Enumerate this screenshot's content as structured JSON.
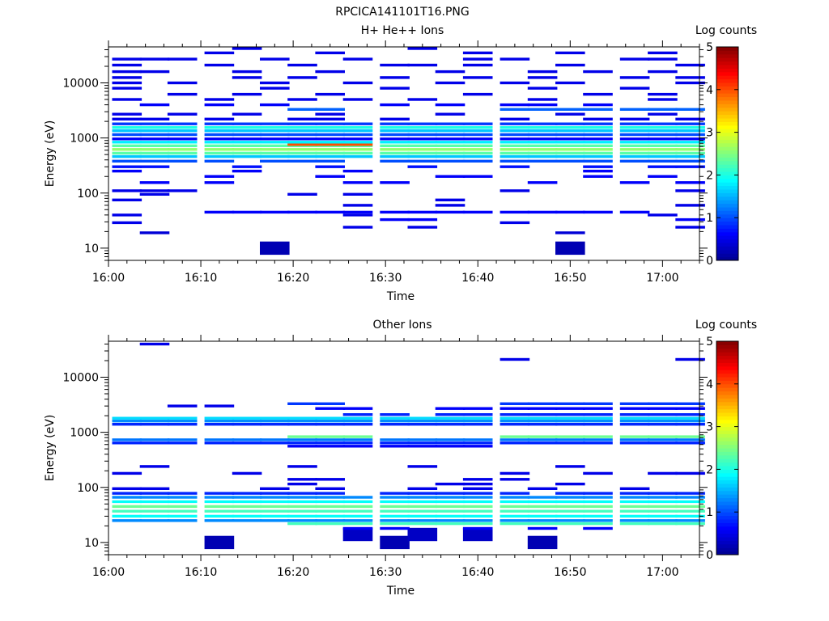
{
  "figure_title": "RPCICA141101T16.PNG",
  "colormap": [
    "#00008f",
    "#0000ff",
    "#0080ff",
    "#00ffff",
    "#80ff80",
    "#ffff00",
    "#ff8000",
    "#ff0000",
    "#800000"
  ],
  "chart_data": [
    {
      "type": "heatmap",
      "title": "H+ He++ Ions",
      "xlabel": "Time",
      "ylabel": "Energy (eV)",
      "colorbar_label": "Log counts",
      "colorbar_ticks": [
        "0",
        "1",
        "2",
        "3",
        "4",
        "5"
      ],
      "color_range": [
        0,
        5
      ],
      "xlim": [
        "16:00",
        "17:04"
      ],
      "x_ticks": [
        "16:00",
        "16:10",
        "16:20",
        "16:30",
        "16:40",
        "16:50",
        "17:00"
      ],
      "y_scale": "log",
      "ylim": [
        6,
        45000
      ],
      "y_ticks": [
        "10",
        "100",
        "1000",
        "10000"
      ],
      "time_bins": [
        "16:02",
        "16:05",
        "16:08",
        "16:12",
        "16:15",
        "16:18",
        "16:21",
        "16:24",
        "16:27",
        "16:31",
        "16:34",
        "16:37",
        "16:40",
        "16:44",
        "16:47",
        "16:50",
        "16:53",
        "16:57",
        "17:00",
        "17:03"
      ],
      "cells": [
        {
          "e": 10,
          "t": [
            5,
            15
          ],
          "v": 0.2
        },
        {
          "e": 19,
          "t": [
            1,
            15
          ],
          "v": 0.4
        },
        {
          "e": 24,
          "t": [
            8,
            10,
            19
          ],
          "v": 0.5
        },
        {
          "e": 29,
          "t": [
            0,
            13
          ],
          "v": 0.5
        },
        {
          "e": 33,
          "t": [
            9,
            10,
            19
          ],
          "v": 0.6
        },
        {
          "e": 40,
          "t": [
            0,
            8,
            18
          ],
          "v": 0.5
        },
        {
          "e": 45,
          "t": [
            3,
            4,
            5,
            6,
            7,
            8,
            9,
            10,
            11,
            12,
            13,
            14,
            15,
            16,
            17
          ],
          "v": 0.6
        },
        {
          "e": 60,
          "t": [
            8,
            11,
            19
          ],
          "v": 0.5
        },
        {
          "e": 75,
          "t": [
            0,
            11
          ],
          "v": 0.5
        },
        {
          "e": 95,
          "t": [
            1,
            6,
            8
          ],
          "v": 0.5
        },
        {
          "e": 110,
          "t": [
            0,
            1,
            2,
            13,
            19
          ],
          "v": 0.5
        },
        {
          "e": 155,
          "t": [
            1,
            3,
            8,
            9,
            14,
            17,
            19
          ],
          "v": 0.6
        },
        {
          "e": 200,
          "t": [
            3,
            7,
            11,
            12,
            16,
            18
          ],
          "v": 0.6
        },
        {
          "e": 250,
          "t": [
            0,
            4,
            8,
            16
          ],
          "v": 0.6
        },
        {
          "e": 300,
          "t": [
            0,
            1,
            4,
            7,
            10,
            13,
            16,
            18,
            19
          ],
          "v": 0.7
        },
        {
          "e": 380,
          "t": [
            0,
            1,
            2,
            3,
            5,
            6,
            7,
            9,
            10,
            11,
            12,
            13,
            14,
            15,
            16,
            17,
            18,
            19
          ],
          "v": 1.0
        },
        {
          "e": 460,
          "t": [
            0,
            1,
            2,
            3,
            4,
            5,
            6,
            7,
            8,
            9,
            10,
            11,
            12,
            13,
            14,
            15,
            16,
            17,
            18,
            19
          ],
          "v": 1.6
        },
        {
          "e": 530,
          "t": [
            0,
            1,
            2,
            3,
            4,
            5,
            6,
            7,
            8,
            9,
            10,
            11,
            12,
            13,
            14,
            15,
            16,
            17,
            18,
            19
          ],
          "v": 2.3
        },
        {
          "e": 620,
          "t": [
            0,
            1,
            2,
            3,
            4,
            5,
            6,
            7,
            8,
            9,
            10,
            11,
            12,
            13,
            14,
            15,
            16,
            17,
            18,
            19
          ],
          "v": 2.6
        },
        {
          "e": 720,
          "t": [
            0,
            1,
            2,
            3,
            4,
            5,
            6,
            7,
            8,
            9,
            10,
            11,
            12,
            13,
            14,
            15,
            16,
            17,
            18,
            19
          ],
          "v": 2.3
        },
        {
          "e": 760,
          "t": [
            6,
            7,
            8
          ],
          "v": 4.0
        },
        {
          "e": 840,
          "t": [
            0,
            1,
            2,
            3,
            4,
            5,
            6,
            7,
            8,
            9,
            10,
            11,
            12,
            13,
            14,
            15,
            16,
            17,
            18,
            19
          ],
          "v": 1.8
        },
        {
          "e": 960,
          "t": [
            0,
            1,
            2,
            3,
            4,
            5,
            6,
            7,
            8,
            9,
            10,
            11,
            12,
            13,
            14,
            15,
            16,
            17,
            18,
            19
          ],
          "v": 0.6
        },
        {
          "e": 1150,
          "t": [
            0,
            1,
            2,
            3,
            4,
            5,
            6,
            7,
            8,
            9,
            10,
            11,
            12,
            13,
            14,
            15,
            16,
            17,
            18,
            19
          ],
          "v": 1.0
        },
        {
          "e": 1350,
          "t": [
            0,
            1,
            2,
            3,
            4,
            5,
            6,
            7,
            8,
            9,
            10,
            11,
            12,
            13,
            14,
            15,
            16,
            17,
            18,
            19
          ],
          "v": 1.6
        },
        {
          "e": 1550,
          "t": [
            0,
            1,
            2,
            3,
            4,
            5,
            6,
            7,
            8,
            9,
            10,
            11,
            12,
            13,
            14,
            15,
            16,
            17,
            18,
            19
          ],
          "v": 2.0
        },
        {
          "e": 1800,
          "t": [
            0,
            1,
            2,
            3,
            4,
            5,
            6,
            7,
            8,
            9,
            10,
            11,
            12,
            13,
            14,
            15,
            16,
            17,
            18,
            19
          ],
          "v": 0.9
        },
        {
          "e": 2200,
          "t": [
            0,
            1,
            3,
            6,
            7,
            9,
            13,
            16,
            17,
            19
          ],
          "v": 0.5
        },
        {
          "e": 2700,
          "t": [
            0,
            2,
            4,
            7,
            11,
            15,
            18
          ],
          "v": 0.5
        },
        {
          "e": 3300,
          "t": [
            6,
            7,
            13,
            14,
            15,
            16,
            17,
            18,
            19
          ],
          "v": 1.1
        },
        {
          "e": 4000,
          "t": [
            1,
            3,
            5,
            9,
            11,
            13,
            14,
            16
          ],
          "v": 0.6
        },
        {
          "e": 5000,
          "t": [
            0,
            3,
            6,
            8,
            10,
            14,
            18
          ],
          "v": 0.5
        },
        {
          "e": 6200,
          "t": [
            2,
            4,
            7,
            12,
            16,
            18
          ],
          "v": 0.5
        },
        {
          "e": 8000,
          "t": [
            0,
            5,
            9,
            14,
            17
          ],
          "v": 0.5
        },
        {
          "e": 10000,
          "t": [
            0,
            2,
            5,
            8,
            11,
            13,
            15,
            19
          ],
          "v": 0.5
        },
        {
          "e": 12500,
          "t": [
            0,
            4,
            6,
            9,
            12,
            14,
            17,
            19
          ],
          "v": 0.5
        },
        {
          "e": 16000,
          "t": [
            0,
            1,
            4,
            7,
            11,
            14,
            16,
            18
          ],
          "v": 0.5
        },
        {
          "e": 21000,
          "t": [
            0,
            3,
            6,
            9,
            10,
            12,
            15,
            19
          ],
          "v": 0.5
        },
        {
          "e": 27000,
          "t": [
            0,
            1,
            2,
            5,
            8,
            12,
            13,
            17,
            18
          ],
          "v": 0.5
        },
        {
          "e": 35000,
          "t": [
            3,
            7,
            12,
            15,
            18
          ],
          "v": 0.5
        },
        {
          "e": 42000,
          "t": [
            4,
            10
          ],
          "v": 0.5
        }
      ]
    },
    {
      "type": "heatmap",
      "title": "Other Ions",
      "xlabel": "Time",
      "ylabel": "Energy (eV)",
      "colorbar_label": "Log counts",
      "colorbar_ticks": [
        "0",
        "1",
        "2",
        "3",
        "4",
        "5"
      ],
      "color_range": [
        0,
        5
      ],
      "xlim": [
        "16:00",
        "17:04"
      ],
      "x_ticks": [
        "16:00",
        "16:10",
        "16:20",
        "16:30",
        "16:40",
        "16:50",
        "17:00"
      ],
      "y_scale": "log",
      "ylim": [
        6,
        45000
      ],
      "y_ticks": [
        "10",
        "100",
        "1000",
        "10000"
      ],
      "time_bins": [
        "16:02",
        "16:05",
        "16:08",
        "16:12",
        "16:15",
        "16:18",
        "16:21",
        "16:24",
        "16:27",
        "16:31",
        "16:34",
        "16:37",
        "16:40",
        "16:44",
        "16:47",
        "16:50",
        "16:53",
        "16:57",
        "17:00",
        "17:03"
      ],
      "cells": [
        {
          "e": 10,
          "t": [
            3,
            9,
            14
          ],
          "v": 0.2
        },
        {
          "e": 14,
          "t": [
            8,
            10,
            12
          ],
          "v": 0.3
        },
        {
          "e": 18,
          "t": [
            8,
            9,
            12,
            14,
            16
          ],
          "v": 0.6
        },
        {
          "e": 22,
          "t": [
            6,
            7,
            8,
            9,
            10,
            11,
            12,
            13,
            14,
            15,
            16,
            17,
            18,
            19
          ],
          "v": 2.2
        },
        {
          "e": 25,
          "t": [
            0,
            1,
            2,
            3,
            4,
            5,
            6,
            7,
            8,
            9,
            10,
            11,
            12,
            13,
            14,
            15,
            16,
            17,
            18,
            19
          ],
          "v": 1.3
        },
        {
          "e": 30,
          "t": [
            0,
            1,
            2,
            3,
            4,
            5,
            6,
            7,
            8,
            9,
            10,
            11,
            12,
            13,
            14,
            15,
            16,
            17,
            18,
            19
          ],
          "v": 1.9
        },
        {
          "e": 37,
          "t": [
            0,
            1,
            2,
            3,
            4,
            5,
            6,
            7,
            8,
            9,
            10,
            11,
            12,
            13,
            14,
            15,
            16,
            17,
            18,
            19
          ],
          "v": 2.2
        },
        {
          "e": 45,
          "t": [
            0,
            1,
            2,
            3,
            4,
            5,
            6,
            7,
            8,
            9,
            10,
            11,
            12,
            13,
            14,
            15,
            16,
            17,
            18,
            19
          ],
          "v": 2.4
        },
        {
          "e": 55,
          "t": [
            0,
            1,
            2,
            3,
            4,
            5,
            6,
            7,
            8,
            9,
            10,
            11,
            12,
            13,
            14,
            15,
            16,
            17,
            18,
            19
          ],
          "v": 1.9
        },
        {
          "e": 66,
          "t": [
            0,
            1,
            2,
            3,
            4,
            5,
            6,
            7,
            8,
            9,
            10,
            11,
            12,
            13,
            14,
            15,
            16,
            17,
            18,
            19
          ],
          "v": 1.3
        },
        {
          "e": 78,
          "t": [
            0,
            1,
            2,
            3,
            4,
            5,
            6,
            7,
            9,
            10,
            11,
            12,
            13,
            15,
            16,
            17,
            18,
            19
          ],
          "v": 0.8
        },
        {
          "e": 95,
          "t": [
            0,
            1,
            5,
            7,
            10,
            12,
            14,
            17
          ],
          "v": 0.5
        },
        {
          "e": 115,
          "t": [
            6,
            11,
            12,
            15
          ],
          "v": 0.5
        },
        {
          "e": 140,
          "t": [
            6,
            7,
            12,
            13
          ],
          "v": 0.5
        },
        {
          "e": 180,
          "t": [
            0,
            4,
            13,
            16,
            18,
            19
          ],
          "v": 0.5
        },
        {
          "e": 240,
          "t": [
            1,
            6,
            10,
            15
          ],
          "v": 0.5
        },
        {
          "e": 560,
          "t": [
            6,
            7,
            8,
            9,
            10,
            11,
            12
          ],
          "v": 0.6
        },
        {
          "e": 640,
          "t": [
            0,
            1,
            2,
            3,
            4,
            5,
            6,
            7,
            8,
            9,
            10,
            11,
            12,
            13,
            14,
            15,
            16,
            17,
            18,
            19
          ],
          "v": 0.8
        },
        {
          "e": 730,
          "t": [
            0,
            1,
            2,
            3,
            4,
            5,
            6,
            7,
            8,
            9,
            10,
            11,
            12,
            13,
            14,
            15,
            16,
            17,
            18,
            19
          ],
          "v": 1.2
        },
        {
          "e": 830,
          "t": [
            6,
            7,
            8,
            13,
            14,
            15,
            16,
            17,
            18,
            19
          ],
          "v": 2.4
        },
        {
          "e": 1400,
          "t": [
            0,
            1,
            2,
            3,
            4,
            5,
            6,
            7,
            8,
            9,
            10,
            11,
            12,
            13,
            14,
            15,
            16,
            17,
            18,
            19
          ],
          "v": 0.8
        },
        {
          "e": 1600,
          "t": [
            0,
            1,
            2,
            3,
            4,
            5,
            6,
            7,
            8,
            9,
            10,
            11,
            12,
            13,
            14,
            15,
            16,
            17,
            18,
            19
          ],
          "v": 1.3
        },
        {
          "e": 1800,
          "t": [
            0,
            1,
            2,
            3,
            4,
            5,
            6,
            7,
            8,
            9,
            10,
            11,
            12,
            13,
            14,
            15,
            16,
            17,
            18,
            19
          ],
          "v": 1.7
        },
        {
          "e": 2100,
          "t": [
            8,
            9,
            11,
            12,
            13,
            14,
            15,
            16,
            17,
            18,
            19
          ],
          "v": 0.8
        },
        {
          "e": 2700,
          "t": [
            7,
            8,
            11,
            12,
            13,
            14,
            15,
            16,
            17,
            18,
            19
          ],
          "v": 0.6
        },
        {
          "e": 3000,
          "t": [
            2,
            3
          ],
          "v": 0.5
        },
        {
          "e": 3300,
          "t": [
            6,
            7,
            13,
            14,
            15,
            16,
            17,
            18,
            19
          ],
          "v": 0.9
        },
        {
          "e": 21000,
          "t": [
            13,
            19
          ],
          "v": 0.5
        },
        {
          "e": 40000,
          "t": [
            1
          ],
          "v": 0.5
        }
      ]
    }
  ]
}
